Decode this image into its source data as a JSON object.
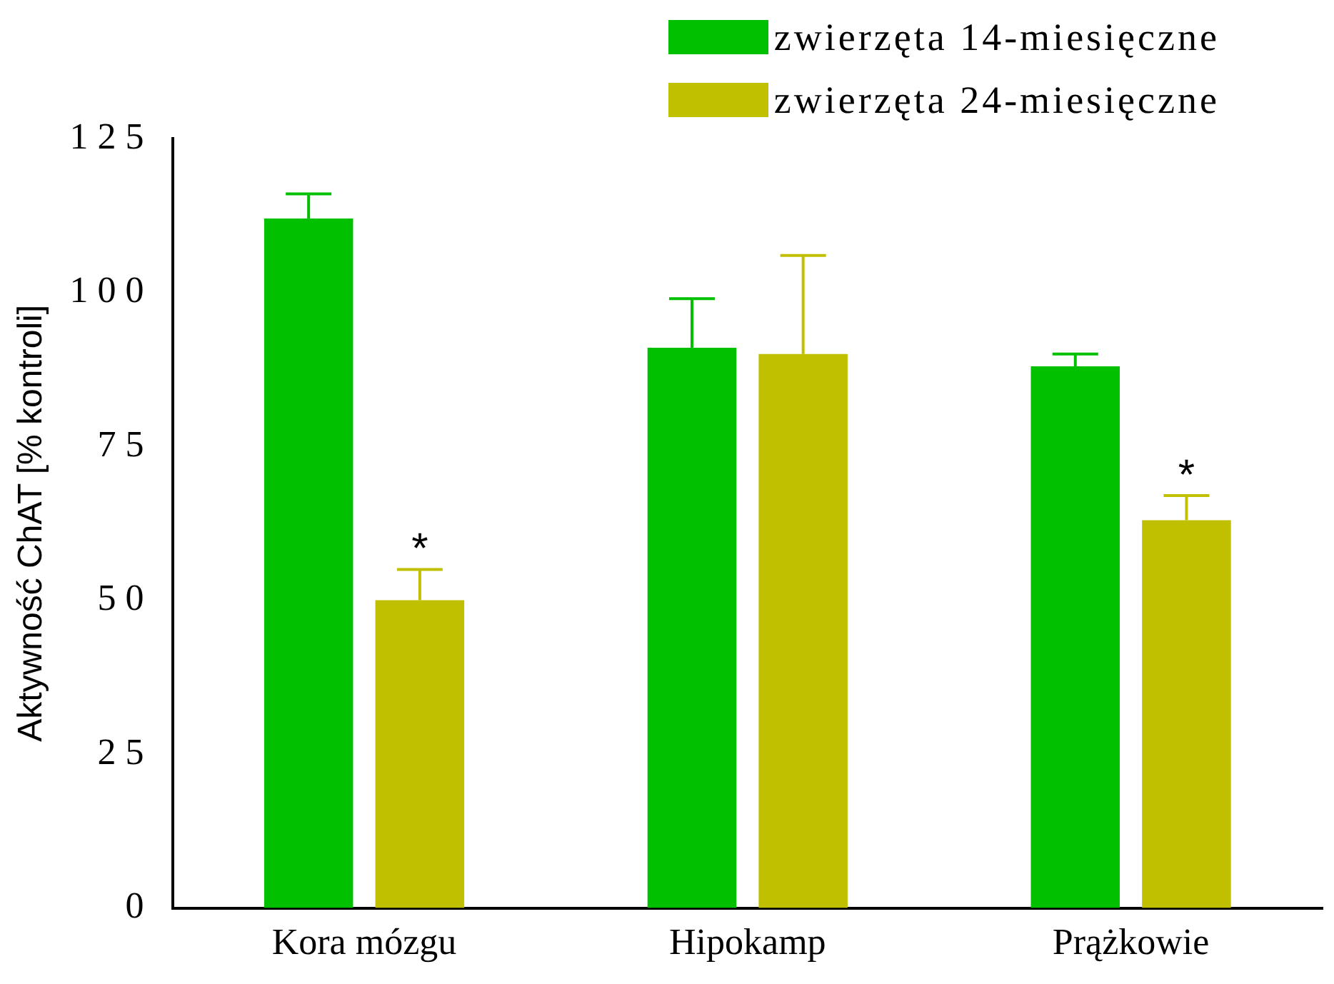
{
  "chart_data": {
    "type": "bar",
    "ylabel": "Aktywność ChAT [% kontroli]",
    "categories": [
      "Kora mózgu",
      "Hipokamp",
      "Prążkowie"
    ],
    "series": [
      {
        "name": "zwierzęta 14-miesięczne",
        "color": "#00c000",
        "values": [
          112,
          91,
          88
        ],
        "errors": [
          [
            112,
            116
          ],
          [
            91,
            99
          ],
          [
            88,
            90
          ]
        ]
      },
      {
        "name": "zwierzęta 24-miesięczne",
        "color": "#c0c000",
        "values": [
          50,
          90,
          63
        ],
        "errors": [
          [
            50,
            55
          ],
          [
            90,
            106
          ],
          [
            63,
            67
          ]
        ]
      }
    ],
    "ylim": [
      0,
      125
    ],
    "yticks": [
      0,
      25,
      50,
      75,
      100,
      125
    ],
    "grid": false,
    "legend": "top right",
    "annotations": [
      "*",
      "*"
    ]
  }
}
